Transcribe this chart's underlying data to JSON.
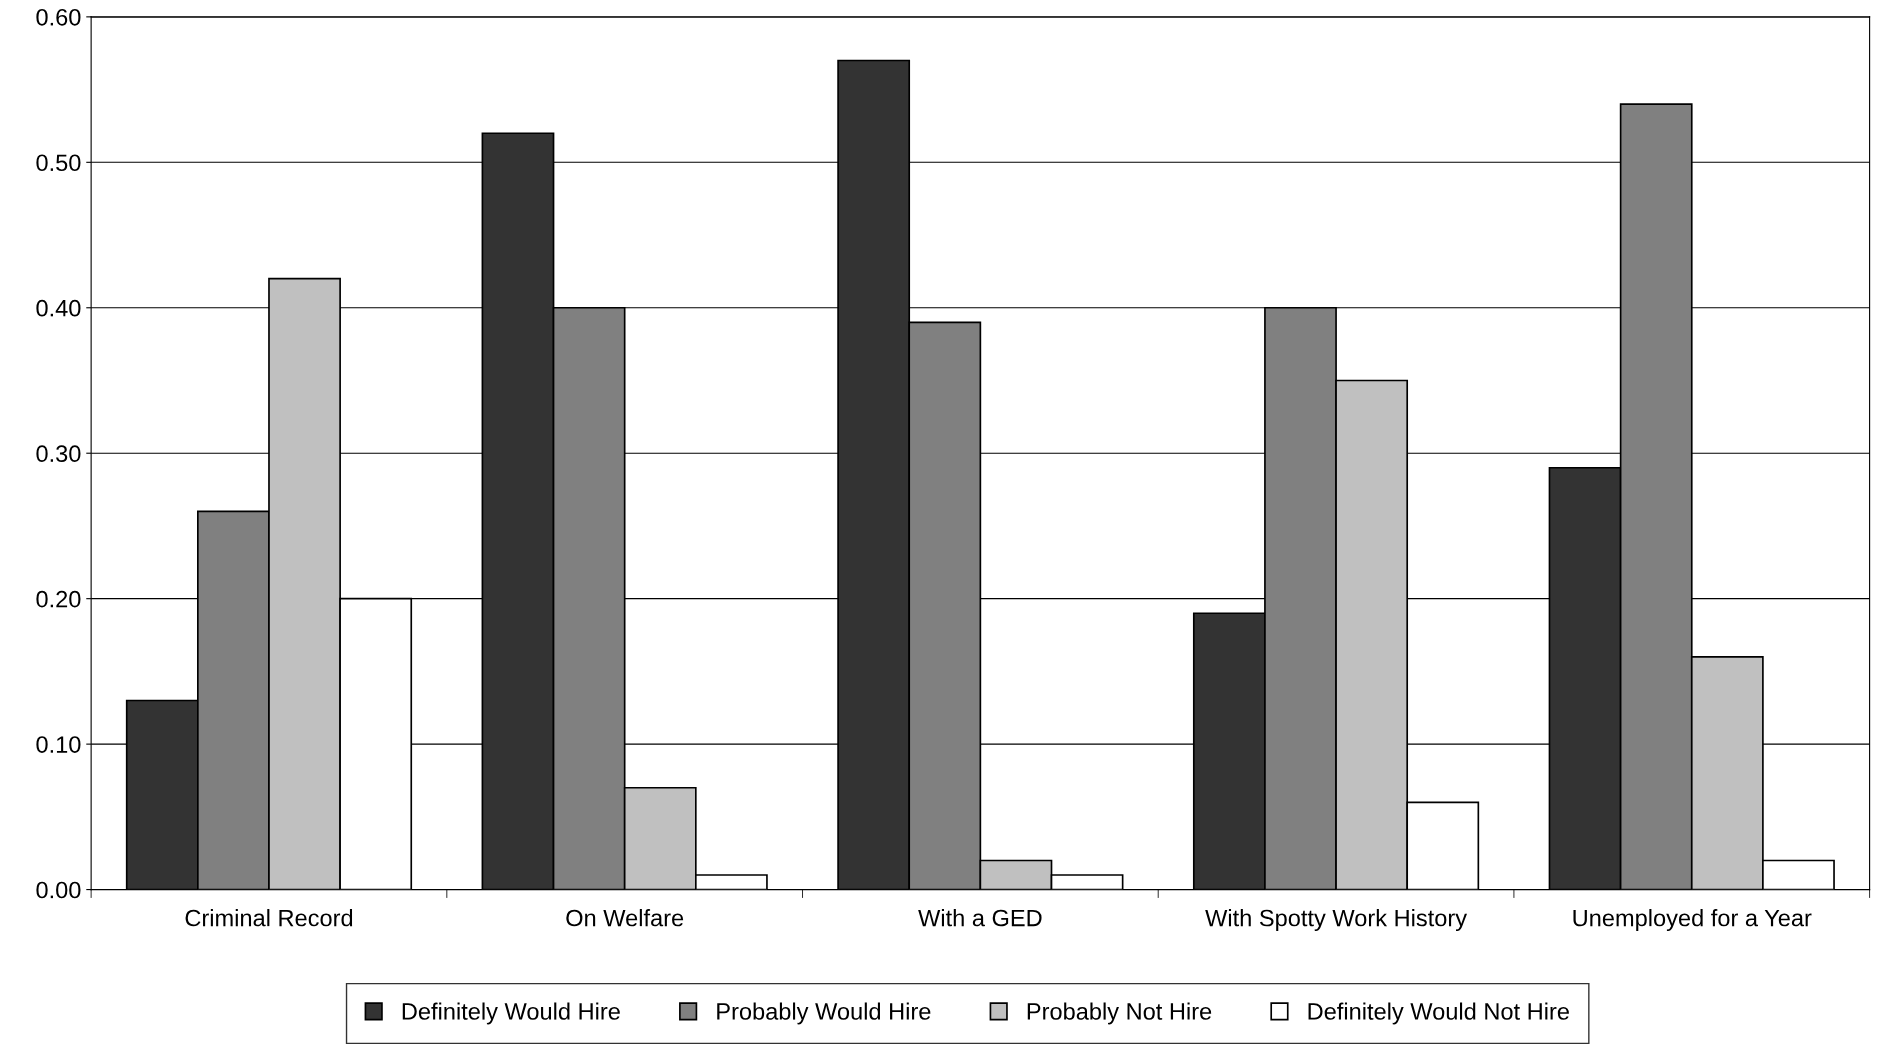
{
  "chart_data": {
    "type": "bar",
    "categories": [
      "Criminal Record",
      "On Welfare",
      "With a GED",
      "With Spotty Work History",
      "Unemployed for a Year"
    ],
    "series": [
      {
        "name": "Definitely Would Hire",
        "color": "#333333",
        "values": [
          0.13,
          0.52,
          0.57,
          0.19,
          0.29
        ]
      },
      {
        "name": "Probably Would Hire",
        "color": "#808080",
        "values": [
          0.26,
          0.4,
          0.39,
          0.4,
          0.54
        ]
      },
      {
        "name": "Probably Not Hire",
        "color": "#c0c0c0",
        "values": [
          0.42,
          0.07,
          0.02,
          0.35,
          0.16
        ]
      },
      {
        "name": "Definitely Would Not Hire",
        "color": "#ffffff",
        "values": [
          0.2,
          0.01,
          0.01,
          0.06,
          0.02
        ]
      }
    ],
    "ylim": [
      0,
      0.6
    ],
    "yticks": [
      {
        "value": 0,
        "label": "0.00"
      },
      {
        "value": 0.1,
        "label": "0.10"
      },
      {
        "value": 0.2,
        "label": "0.20"
      },
      {
        "value": 0.3,
        "label": "0.30"
      },
      {
        "value": 0.4,
        "label": "0.40"
      },
      {
        "value": 0.5,
        "label": "0.50"
      },
      {
        "value": 0.6,
        "label": "0.60"
      }
    ],
    "grid": "y",
    "legend": "bottom"
  }
}
